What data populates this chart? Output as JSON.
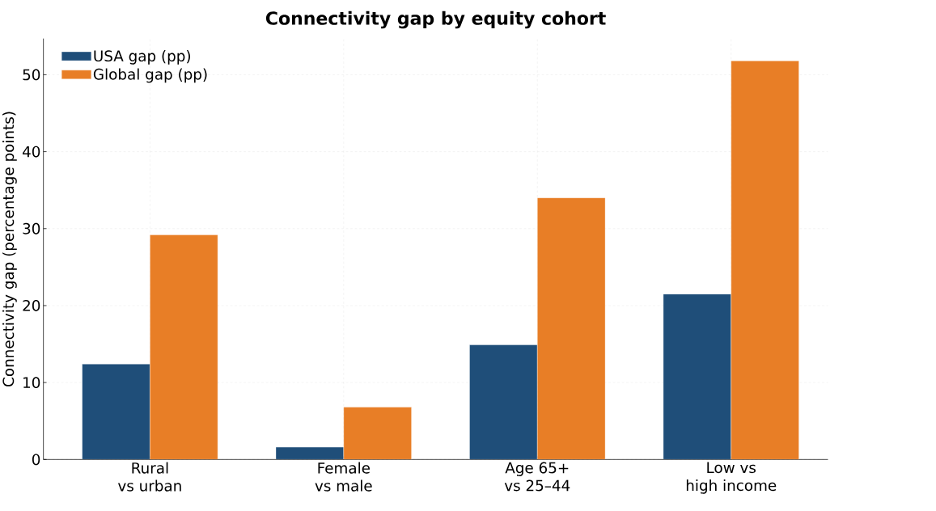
{
  "chart_data": {
    "type": "bar",
    "title": "Connectivity gap by equity cohort",
    "ylabel": "Connectivity gap (percentage points)",
    "categories": [
      "Rural\nvs urban",
      "Female\nvs male",
      "Age 65+\nvs 25–44",
      "Low vs\nhigh income"
    ],
    "series": [
      {
        "name": "USA gap (pp)",
        "color": "#1f4e79",
        "values": [
          12.4,
          1.6,
          14.9,
          21.5
        ]
      },
      {
        "name": "Global gap (pp)",
        "color": "#e87e26",
        "values": [
          29.2,
          6.8,
          34.0,
          51.8
        ]
      }
    ],
    "ylim": [
      0,
      54.7
    ],
    "yticks": [
      0,
      10,
      20,
      30,
      40,
      50
    ],
    "grid": true,
    "legend": "top left"
  }
}
